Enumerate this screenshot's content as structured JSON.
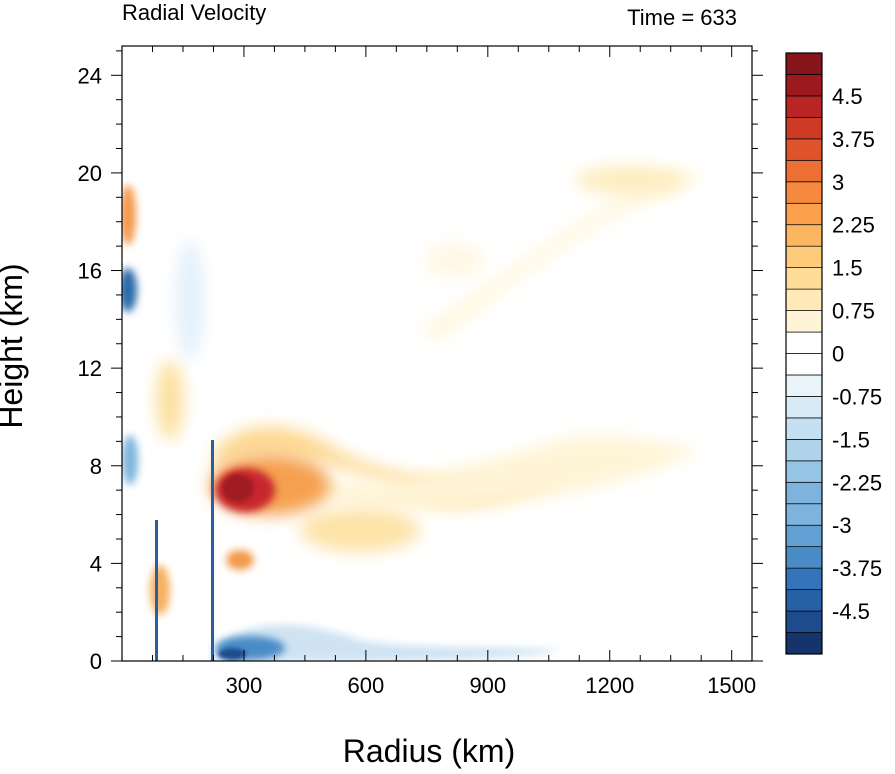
{
  "chart_data": {
    "type": "heatmap",
    "title_left": "Radial Velocity",
    "title_right": "Time = 633",
    "xlabel": "Radius (km)",
    "ylabel": "Height (km)",
    "xlim": [
      0,
      1550
    ],
    "ylim": [
      0,
      25.2
    ],
    "xticks": [
      300,
      600,
      900,
      1200,
      1500
    ],
    "xtick_labels": [
      "300",
      "600",
      "900",
      "1200",
      "1500"
    ],
    "yticks": [
      0,
      4,
      8,
      12,
      16,
      20,
      24
    ],
    "ytick_labels": [
      "0",
      "4",
      "8",
      "12",
      "16",
      "20",
      "24"
    ],
    "colorbar": {
      "min": -5.25,
      "max": 5.25,
      "step": 0.375,
      "labels": [
        "4.5",
        "3.75",
        "3",
        "2.25",
        "1.5",
        "0.75",
        "0",
        "-0.75",
        "-1.5",
        "-2.25",
        "-3",
        "-3.75",
        "-4.5"
      ],
      "label_values": [
        4.5,
        3.75,
        3,
        2.25,
        1.5,
        0.75,
        0,
        -0.75,
        -1.5,
        -2.25,
        -3,
        -3.75,
        -4.5
      ]
    },
    "features": [
      {
        "name": "outflow-core",
        "x": 260,
        "y": 7.0,
        "value": 5.0
      },
      {
        "name": "outflow-tongue",
        "x": 500,
        "y": 5.5,
        "value": 1.5
      },
      {
        "name": "upper-outflow",
        "x": 1250,
        "y": 20.0,
        "value": 1.0
      },
      {
        "name": "inflow-surface",
        "x": 280,
        "y": 0.5,
        "value": -3.0
      },
      {
        "name": "inflow-upper-inner",
        "x": 25,
        "y": 15.0,
        "value": -4.0
      }
    ]
  }
}
